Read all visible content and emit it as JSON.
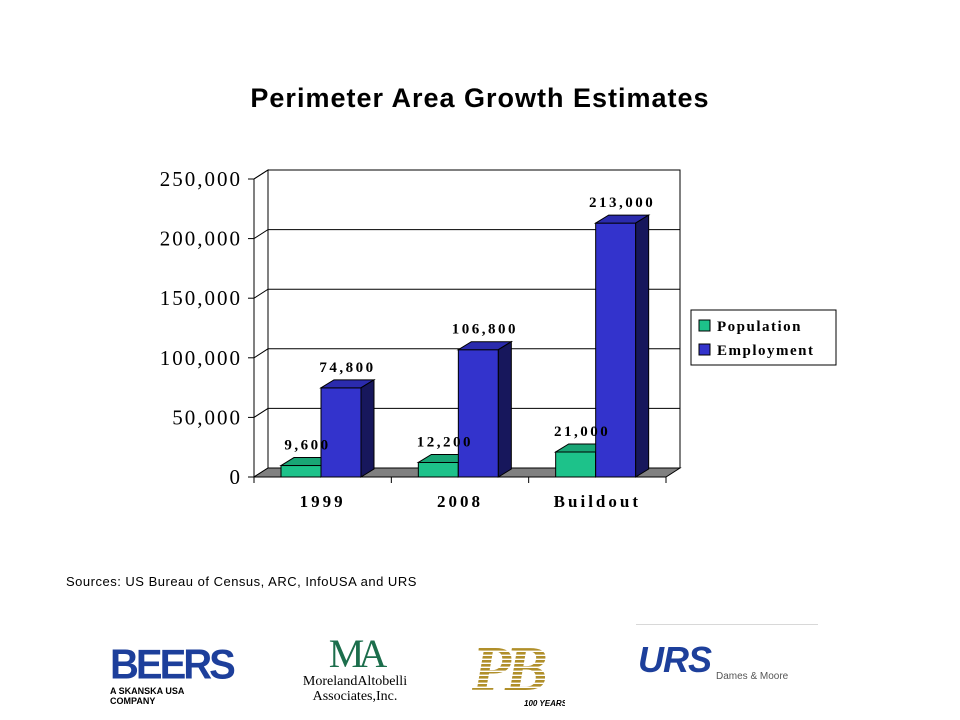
{
  "chart_data": {
    "type": "bar",
    "title": "Perimeter Area Growth Estimates",
    "categories": [
      "1999",
      "2008",
      "Buildout"
    ],
    "series": [
      {
        "name": "Population",
        "values": [
          9600,
          12200,
          21000
        ],
        "labels": [
          "9,600",
          "12,200",
          "21,000"
        ],
        "color": "#1dc28a"
      },
      {
        "name": "Employment",
        "values": [
          74800,
          106800,
          213000
        ],
        "labels": [
          "74,800",
          "106,800",
          "213,000"
        ],
        "color": "#3333cc"
      }
    ],
    "ylim": [
      0,
      250000
    ],
    "yticks": [
      0,
      50000,
      100000,
      150000,
      200000,
      250000
    ],
    "ytick_labels": [
      "0",
      "50,000",
      "100,000",
      "150,000",
      "200,000",
      "250,000"
    ],
    "xlabel": "",
    "ylabel": "",
    "grid": true,
    "legend": "right",
    "style": "3d-clustered-column"
  },
  "sources": "Sources:  US Bureau of Census, ARC, InfoUSA and URS",
  "logos": {
    "beers": {
      "name": "BEERS",
      "tagline": "A SKANSKA USA COMPANY"
    },
    "moreland": {
      "mark": "MA",
      "line1": "MorelandAltobelli",
      "line2": "Associates,Inc."
    },
    "pb": {
      "mark": "PB",
      "sub": "100 YEARS"
    },
    "urs": {
      "name": "URS",
      "sub": "Dames & Moore"
    }
  }
}
